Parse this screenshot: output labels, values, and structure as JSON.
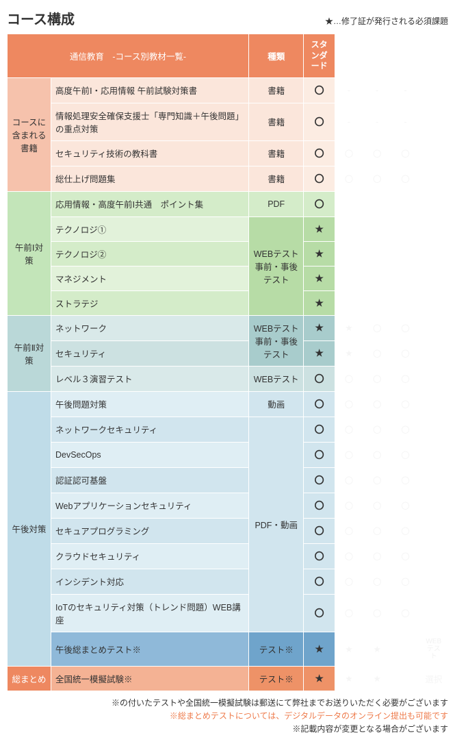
{
  "title": "コース構成",
  "legend": "★…修了証が発行される必須課題",
  "headers": {
    "main": "通信教育　-コース別教材一覧-",
    "type": "種類",
    "standard": "スタンダード"
  },
  "sections": {
    "books": "コースに含まれる書籍",
    "am1": "午前Ⅰ対策",
    "am2": "午前Ⅱ対策",
    "pm": "午後対策",
    "summary": "総まとめ"
  },
  "types": {
    "book": "書籍",
    "pdf": "PDF",
    "webtest": "WEBテスト事前・事後テスト",
    "webtest_only": "WEBテスト",
    "video": "動画",
    "pdfvideo": "PDF・動画",
    "test": "テスト※"
  },
  "marks": {
    "circle": "〇",
    "star": "★"
  },
  "ghost": {
    "circle": "〇",
    "star": "★",
    "dash": "-",
    "web": "WEBテスト",
    "sel": "選択"
  },
  "rows": {
    "b1": "高度午前Ⅰ・応用情報 午前試験対策書",
    "b2": "情報処理安全確保支援士「専門知識＋午後問題」の重点対策",
    "b3": "セキュリティ技術の教科書",
    "b4": "総仕上げ問題集",
    "a1_1": "応用情報・高度午前Ⅰ共通　ポイント集",
    "a1_2": "テクノロジ①",
    "a1_3": "テクノロジ②",
    "a1_4": "マネジメント",
    "a1_5": "ストラテジ",
    "a2_1": "ネットワーク",
    "a2_2": "セキュリティ",
    "a2_3": "レベル３演習テスト",
    "p1": "午後問題対策",
    "p2": "ネットワークセキュリティ",
    "p3": "DevSecOps",
    "p4": "認証認可基盤",
    "p5": "Webアプリケーションセキュリティ",
    "p6": "セキュアプログラミング",
    "p7": "クラウドセキュリティ",
    "p8": "インシデント対応",
    "p9": "IoTのセキュリティ対策（トレンド問題）WEB講座",
    "p10": "午後総まとめテスト※",
    "s1": "全国統一模擬試験※"
  },
  "footnotes": {
    "f1": "※の付いたテストや全国統一模擬試験は郵送にて弊社までお送りいただく必要がございます",
    "f2": "※総まとめテストについては、デジタルデータのオンライン提出も可能です",
    "f3": "※記載内容が変更となる場合がございます"
  }
}
